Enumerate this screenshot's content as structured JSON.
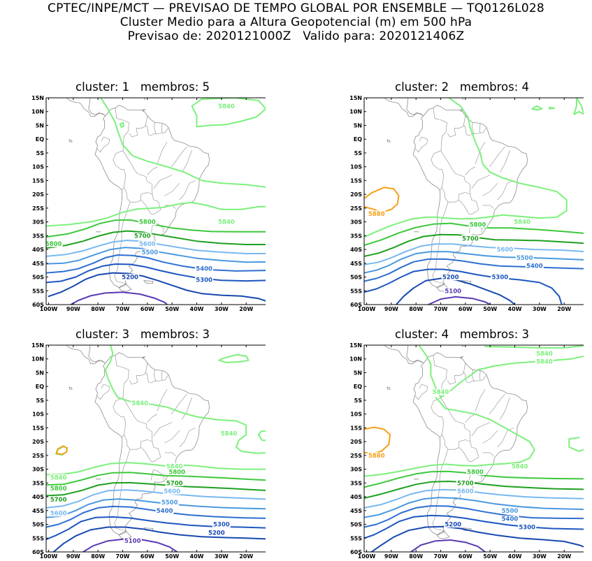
{
  "header": {
    "line1": "CPTEC/INPE/MCT — PREVISAO DE TEMPO GLOBAL POR ENSEMBLE — TQ0126L028",
    "line2": "Cluster Medio para a Altura Geopotencial (m) em 500 hPa",
    "line3": "Previsao de: 2020121000Z   Valido para: 2020121406Z"
  },
  "axes": {
    "lat_labels": [
      "15N",
      "10N",
      "5N",
      "EQ",
      "5S",
      "10S",
      "15S",
      "20S",
      "25S",
      "30S",
      "35S",
      "40S",
      "45S",
      "50S",
      "55S",
      "60S"
    ],
    "lon_labels": [
      "100W",
      "90W",
      "80W",
      "70W",
      "60W",
      "50W",
      "40W",
      "30W",
      "20W"
    ]
  },
  "colors": {
    "c5840": "#7CF07C",
    "c5800": "#3CC83C",
    "c5700": "#1FA01F",
    "c5600": "#78B8F0",
    "c5500": "#4A98E0",
    "c5400": "#2E6FD0",
    "c5300": "#1C56C0",
    "c5200": "#1848B0",
    "c5100": "#5A3AB4",
    "c5880": "#F5A01A",
    "coast": "#8c8c8c"
  },
  "panels": [
    {
      "title": "cluster: 1   membros: 5",
      "labels": [
        {
          "text": "5840",
          "c": "c5840",
          "lon": -28,
          "lat": 12
        },
        {
          "text": "5840",
          "c": "c5840",
          "lon": -28,
          "lat": -30
        },
        {
          "text": "5800",
          "c": "c5800",
          "lon": -60,
          "lat": -30
        },
        {
          "text": "5800",
          "c": "c5800",
          "lon": -98,
          "lat": -38
        },
        {
          "text": "5700",
          "c": "c5700",
          "lon": -62,
          "lat": -35
        },
        {
          "text": "5600",
          "c": "c5600",
          "lon": -60,
          "lat": -38
        },
        {
          "text": "5500",
          "c": "c5500",
          "lon": -59,
          "lat": -41
        },
        {
          "text": "5400",
          "c": "c5400",
          "lon": -37,
          "lat": -47
        },
        {
          "text": "5300",
          "c": "c5300",
          "lon": -37,
          "lat": -51
        },
        {
          "text": "5200",
          "c": "c5200",
          "lon": -67,
          "lat": -50
        }
      ]
    },
    {
      "title": "cluster: 2   membros: 4",
      "labels": [
        {
          "text": "5880",
          "c": "c5880",
          "lon": -96,
          "lat": -27
        },
        {
          "text": "5840",
          "c": "c5840",
          "lon": -37,
          "lat": -30
        },
        {
          "text": "5800",
          "c": "c5800",
          "lon": -55,
          "lat": -31
        },
        {
          "text": "5700",
          "c": "c5700",
          "lon": -58,
          "lat": -36
        },
        {
          "text": "5600",
          "c": "c5600",
          "lon": -44,
          "lat": -40
        },
        {
          "text": "5500",
          "c": "c5500",
          "lon": -36,
          "lat": -43
        },
        {
          "text": "5400",
          "c": "c5400",
          "lon": -32,
          "lat": -46
        },
        {
          "text": "5300",
          "c": "c5300",
          "lon": -46,
          "lat": -50
        },
        {
          "text": "5200",
          "c": "c5200",
          "lon": -66,
          "lat": -50
        },
        {
          "text": "5100",
          "c": "c5100",
          "lon": -65,
          "lat": -55
        }
      ]
    },
    {
      "title": "cluster: 3   membros: 3",
      "labels": [
        {
          "text": "5840",
          "c": "c5840",
          "lon": -63,
          "lat": -6
        },
        {
          "text": "5840",
          "c": "c5840",
          "lon": -27,
          "lat": -17
        },
        {
          "text": "5840",
          "c": "c5840",
          "lon": -49,
          "lat": -29
        },
        {
          "text": "5840",
          "c": "c5840",
          "lon": -96,
          "lat": -33
        },
        {
          "text": "5800",
          "c": "c5800",
          "lon": -48,
          "lat": -31
        },
        {
          "text": "5800",
          "c": "c5800",
          "lon": -96,
          "lat": -37
        },
        {
          "text": "5700",
          "c": "c5700",
          "lon": -49,
          "lat": -35
        },
        {
          "text": "5700",
          "c": "c5700",
          "lon": -96,
          "lat": -41
        },
        {
          "text": "5600",
          "c": "c5600",
          "lon": -50,
          "lat": -38
        },
        {
          "text": "5600",
          "c": "c5600",
          "lon": -96,
          "lat": -46
        },
        {
          "text": "5500",
          "c": "c5500",
          "lon": -51,
          "lat": -42
        },
        {
          "text": "5400",
          "c": "c5400",
          "lon": -53,
          "lat": -45
        },
        {
          "text": "5300",
          "c": "c5300",
          "lon": -30,
          "lat": -50
        },
        {
          "text": "5200",
          "c": "c5200",
          "lon": -32,
          "lat": -53
        },
        {
          "text": "5100",
          "c": "c5100",
          "lon": -66,
          "lat": -56
        }
      ]
    },
    {
      "title": "cluster: 4   membros: 3",
      "labels": [
        {
          "text": "5880",
          "c": "c5880",
          "lon": -96,
          "lat": -25
        },
        {
          "text": "5840",
          "c": "c5840",
          "lon": -28,
          "lat": 12
        },
        {
          "text": "5840",
          "c": "c5840",
          "lon": -28,
          "lat": 9
        },
        {
          "text": "5840",
          "c": "c5840",
          "lon": -70,
          "lat": -2
        },
        {
          "text": "5840",
          "c": "c5840",
          "lon": -38,
          "lat": -29
        },
        {
          "text": "5800",
          "c": "c5800",
          "lon": -56,
          "lat": -31
        },
        {
          "text": "5700",
          "c": "c5700",
          "lon": -60,
          "lat": -35
        },
        {
          "text": "5600",
          "c": "c5600",
          "lon": -60,
          "lat": -38
        },
        {
          "text": "5500",
          "c": "c5500",
          "lon": -42,
          "lat": -45
        },
        {
          "text": "5400",
          "c": "c5400",
          "lon": -42,
          "lat": -48
        },
        {
          "text": "5300",
          "c": "c5300",
          "lon": -35,
          "lat": -51
        },
        {
          "text": "5200",
          "c": "c5200",
          "lon": -65,
          "lat": -50
        }
      ]
    }
  ]
}
